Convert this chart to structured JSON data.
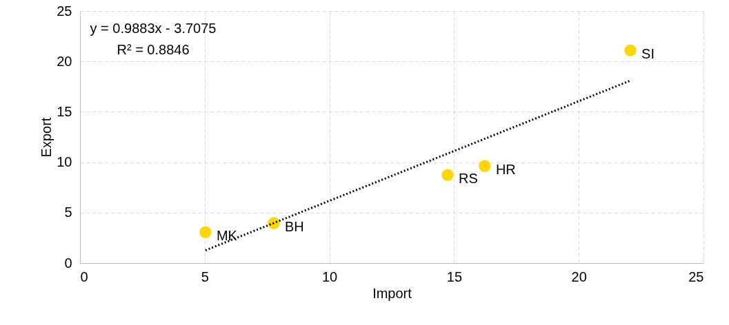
{
  "chart_data": {
    "type": "scatter",
    "xlabel": "Import",
    "ylabel": "Export",
    "series": [
      {
        "color": "#ffd700",
        "x": [
          5.03,
          7.77,
          14.74,
          16.23,
          22.07
        ],
        "values": [
          3.07,
          3.96,
          8.74,
          9.63,
          21.1
        ],
        "marker": "circle"
      },
      {
        "type": "line",
        "color": "#000000",
        "x": [
          5.03,
          22.07
        ],
        "values": [
          1.26,
          18.1
        ],
        "line_style": "dotted"
      }
    ],
    "annotations": [
      "y = 0.9883x - 3.7075",
      "R² = 0.8846",
      {
        "text": "MK",
        "x": 5.03,
        "y": 3.07
      },
      {
        "text": "BH",
        "x": 7.77,
        "y": 3.96
      },
      {
        "text": "RS",
        "x": 14.74,
        "y": 8.74
      },
      {
        "text": "HR",
        "x": 16.23,
        "y": 9.63
      },
      {
        "text": "SI",
        "x": 22.07,
        "y": 21.1
      }
    ],
    "xlim": [
      0,
      25
    ],
    "xticks": [
      0,
      5,
      10,
      15,
      20,
      25
    ],
    "ylim": [
      0,
      25
    ],
    "yticks": [
      0,
      5,
      10,
      15,
      20,
      25
    ],
    "grid": true
  }
}
